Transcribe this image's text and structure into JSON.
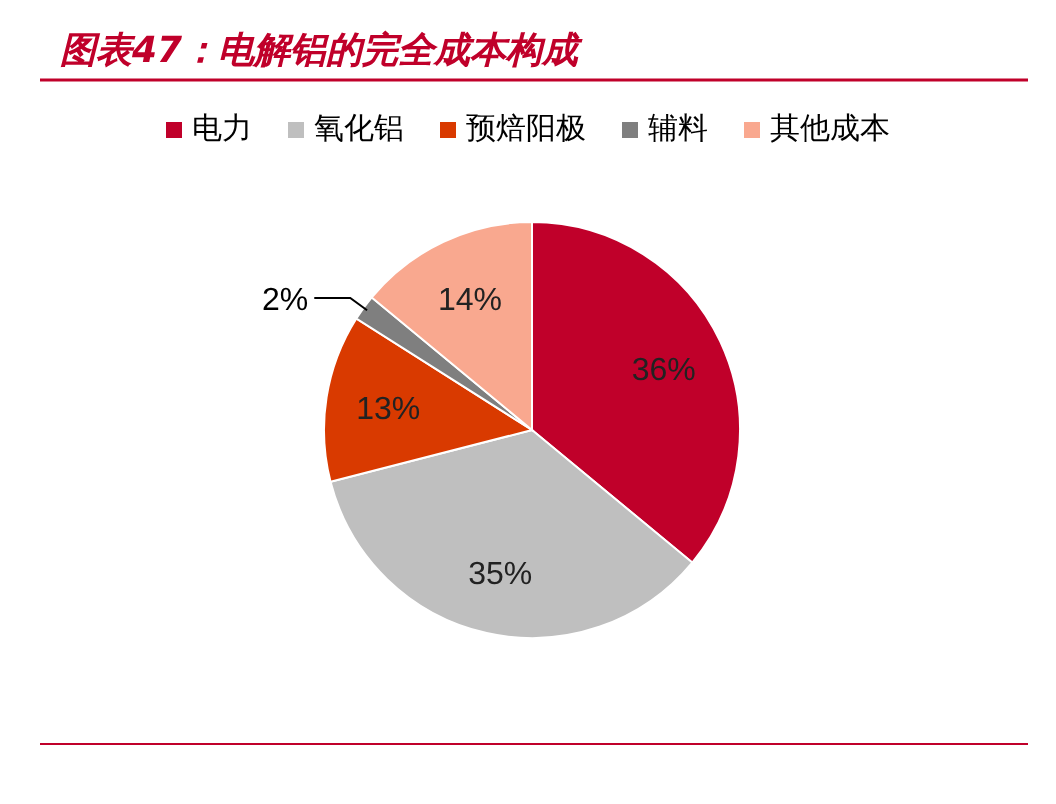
{
  "chart_data": {
    "type": "pie",
    "title": "图表47：电解铝的完全成本构成",
    "categories": [
      "电力",
      "氧化铝",
      "预焙阳极",
      "辅料",
      "其他成本"
    ],
    "values": [
      36,
      35,
      13,
      2,
      14
    ],
    "colors": [
      "#c0002a",
      "#bfbfbf",
      "#d93a00",
      "#7f7f7f",
      "#f9a88f"
    ],
    "value_labels": [
      "36%",
      "35%",
      "13%",
      "2%",
      "14%"
    ],
    "legend": "top"
  }
}
